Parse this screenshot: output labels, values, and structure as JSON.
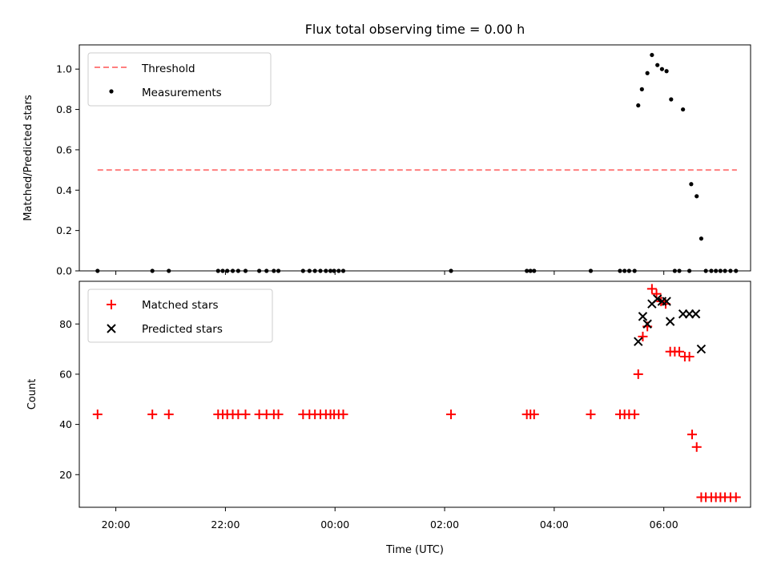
{
  "chart_data": [
    {
      "type": "scatter",
      "title": "Flux total observing time = 0.00 h",
      "ylabel": "Matched/Predicted stars",
      "xlabel": "",
      "ylim": [
        0,
        1.12
      ],
      "yticks": [
        "0.0",
        "0.2",
        "0.4",
        "0.6",
        "0.8",
        "1.0"
      ],
      "legend": {
        "placement": "top-left",
        "entries": [
          "Threshold",
          "Measurements"
        ]
      },
      "threshold": {
        "name": "Threshold",
        "value": 0.5,
        "x_range": [
          "19:40",
          "07:20"
        ],
        "color": "#ff7f7f",
        "style": "dashed"
      },
      "series": [
        {
          "name": "Measurements",
          "color": "#000000",
          "marker": "dot",
          "points": [
            [
              "19:40",
              0
            ],
            [
              "20:40",
              0
            ],
            [
              "20:58",
              0
            ],
            [
              "21:52",
              0
            ],
            [
              "21:57",
              0
            ],
            [
              "22:02",
              0
            ],
            [
              "22:08",
              0
            ],
            [
              "22:14",
              0
            ],
            [
              "22:22",
              0
            ],
            [
              "22:37",
              0
            ],
            [
              "22:45",
              0
            ],
            [
              "22:53",
              0
            ],
            [
              "22:58",
              0
            ],
            [
              "23:25",
              0
            ],
            [
              "23:32",
              0
            ],
            [
              "23:38",
              0
            ],
            [
              "23:44",
              0
            ],
            [
              "23:50",
              0
            ],
            [
              "23:55",
              0
            ],
            [
              "23:59",
              0
            ],
            [
              "00:04",
              0
            ],
            [
              "00:09",
              0
            ],
            [
              "02:07",
              0
            ],
            [
              "03:30",
              0
            ],
            [
              "03:34",
              0
            ],
            [
              "03:38",
              0
            ],
            [
              "04:40",
              0
            ],
            [
              "05:12",
              0
            ],
            [
              "05:17",
              0
            ],
            [
              "05:22",
              0
            ],
            [
              "05:28",
              0
            ],
            [
              "05:32",
              0.82
            ],
            [
              "05:36",
              0.9
            ],
            [
              "05:42",
              0.98
            ],
            [
              "05:47",
              1.07
            ],
            [
              "05:53",
              1.02
            ],
            [
              "05:58",
              1.0
            ],
            [
              "06:03",
              0.99
            ],
            [
              "06:08",
              0.85
            ],
            [
              "06:21",
              0.8
            ],
            [
              "06:12",
              0
            ],
            [
              "06:17",
              0
            ],
            [
              "06:28",
              0
            ],
            [
              "06:30",
              0.43
            ],
            [
              "06:36",
              0.37
            ],
            [
              "06:41",
              0.16
            ],
            [
              "06:46",
              0
            ],
            [
              "06:52",
              0
            ],
            [
              "06:57",
              0
            ],
            [
              "07:02",
              0
            ],
            [
              "07:07",
              0
            ],
            [
              "07:13",
              0
            ],
            [
              "07:19",
              0
            ]
          ]
        }
      ]
    },
    {
      "type": "scatter",
      "title": "",
      "ylabel": "Count",
      "xlabel": "Time (UTC)",
      "ylim": [
        7,
        97
      ],
      "yticks": [
        "20",
        "40",
        "60",
        "80"
      ],
      "xticks": [
        "20:00",
        "22:00",
        "00:00",
        "02:00",
        "04:00",
        "06:00"
      ],
      "legend": {
        "placement": "top-left",
        "entries": [
          "Matched stars",
          "Predicted stars"
        ]
      },
      "series": [
        {
          "name": "Matched stars",
          "color": "#ff0000",
          "marker": "plus",
          "points": [
            [
              "19:40",
              44
            ],
            [
              "20:40",
              44
            ],
            [
              "20:58",
              44
            ],
            [
              "21:52",
              44
            ],
            [
              "21:57",
              44
            ],
            [
              "22:02",
              44
            ],
            [
              "22:08",
              44
            ],
            [
              "22:14",
              44
            ],
            [
              "22:22",
              44
            ],
            [
              "22:37",
              44
            ],
            [
              "22:45",
              44
            ],
            [
              "22:53",
              44
            ],
            [
              "22:58",
              44
            ],
            [
              "23:25",
              44
            ],
            [
              "23:32",
              44
            ],
            [
              "23:38",
              44
            ],
            [
              "23:44",
              44
            ],
            [
              "23:50",
              44
            ],
            [
              "23:55",
              44
            ],
            [
              "23:59",
              44
            ],
            [
              "00:04",
              44
            ],
            [
              "00:09",
              44
            ],
            [
              "02:07",
              44
            ],
            [
              "03:30",
              44
            ],
            [
              "03:34",
              44
            ],
            [
              "03:38",
              44
            ],
            [
              "04:40",
              44
            ],
            [
              "05:12",
              44
            ],
            [
              "05:17",
              44
            ],
            [
              "05:22",
              44
            ],
            [
              "05:28",
              44
            ],
            [
              "05:32",
              60
            ],
            [
              "05:37",
              75
            ],
            [
              "05:42",
              79
            ],
            [
              "05:47",
              94
            ],
            [
              "05:52",
              92
            ],
            [
              "05:57",
              89
            ],
            [
              "06:02",
              88
            ],
            [
              "06:07",
              69
            ],
            [
              "06:12",
              69
            ],
            [
              "06:17",
              69
            ],
            [
              "06:23",
              67
            ],
            [
              "06:28",
              67
            ],
            [
              "06:31",
              36
            ],
            [
              "06:36",
              31
            ],
            [
              "06:41",
              11
            ],
            [
              "06:46",
              11
            ],
            [
              "06:52",
              11
            ],
            [
              "06:57",
              11
            ],
            [
              "07:02",
              11
            ],
            [
              "07:07",
              11
            ],
            [
              "07:13",
              11
            ],
            [
              "07:19",
              11
            ]
          ]
        },
        {
          "name": "Predicted stars",
          "color": "#000000",
          "marker": "x",
          "points": [
            [
              "05:32",
              73
            ],
            [
              "05:37",
              83
            ],
            [
              "05:42",
              80
            ],
            [
              "05:47",
              88
            ],
            [
              "05:53",
              90
            ],
            [
              "05:58",
              89
            ],
            [
              "06:03",
              89
            ],
            [
              "06:07",
              81
            ],
            [
              "06:21",
              84
            ],
            [
              "06:28",
              84
            ],
            [
              "06:35",
              84
            ],
            [
              "06:41",
              70
            ]
          ]
        }
      ]
    }
  ]
}
